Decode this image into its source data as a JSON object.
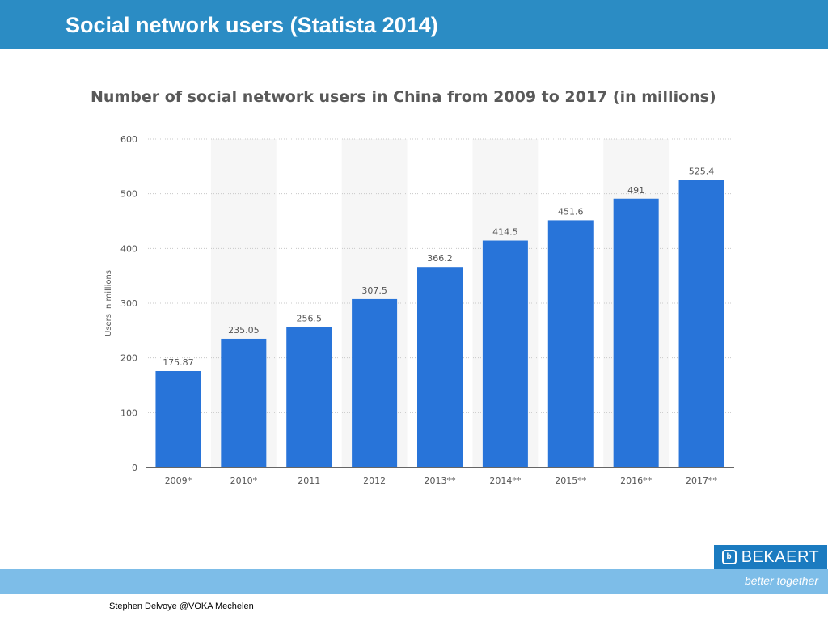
{
  "slide": {
    "title": "Social network users (Statista 2014)",
    "credit": "Stephen Delvoye @VOKA Mechelen"
  },
  "brand": {
    "logo_text": "BEKAERT",
    "tagline": "better together",
    "header_color": "#2b8cc4",
    "footer_band_color": "#7dbde8",
    "logo_color": "#1b7bc0",
    "bar_color": "#2874d9"
  },
  "chart_data": {
    "type": "bar",
    "title": "Number of social network users in China from 2009 to 2017 (in millions)",
    "xlabel": "",
    "ylabel": "Users in millions",
    "categories": [
      "2009*",
      "2010*",
      "2011",
      "2012",
      "2013**",
      "2014**",
      "2015**",
      "2016**",
      "2017**"
    ],
    "values": [
      175.87,
      235.05,
      256.5,
      307.5,
      366.2,
      414.5,
      451.6,
      491,
      525.4
    ],
    "data_labels": [
      "175.87",
      "235.05",
      "256.5",
      "307.5",
      "366.2",
      "414.5",
      "451.6",
      "491",
      "525.4"
    ],
    "ylim": [
      0,
      600
    ],
    "yticks": [
      0,
      100,
      200,
      300,
      400,
      500,
      600
    ],
    "grid": true
  }
}
